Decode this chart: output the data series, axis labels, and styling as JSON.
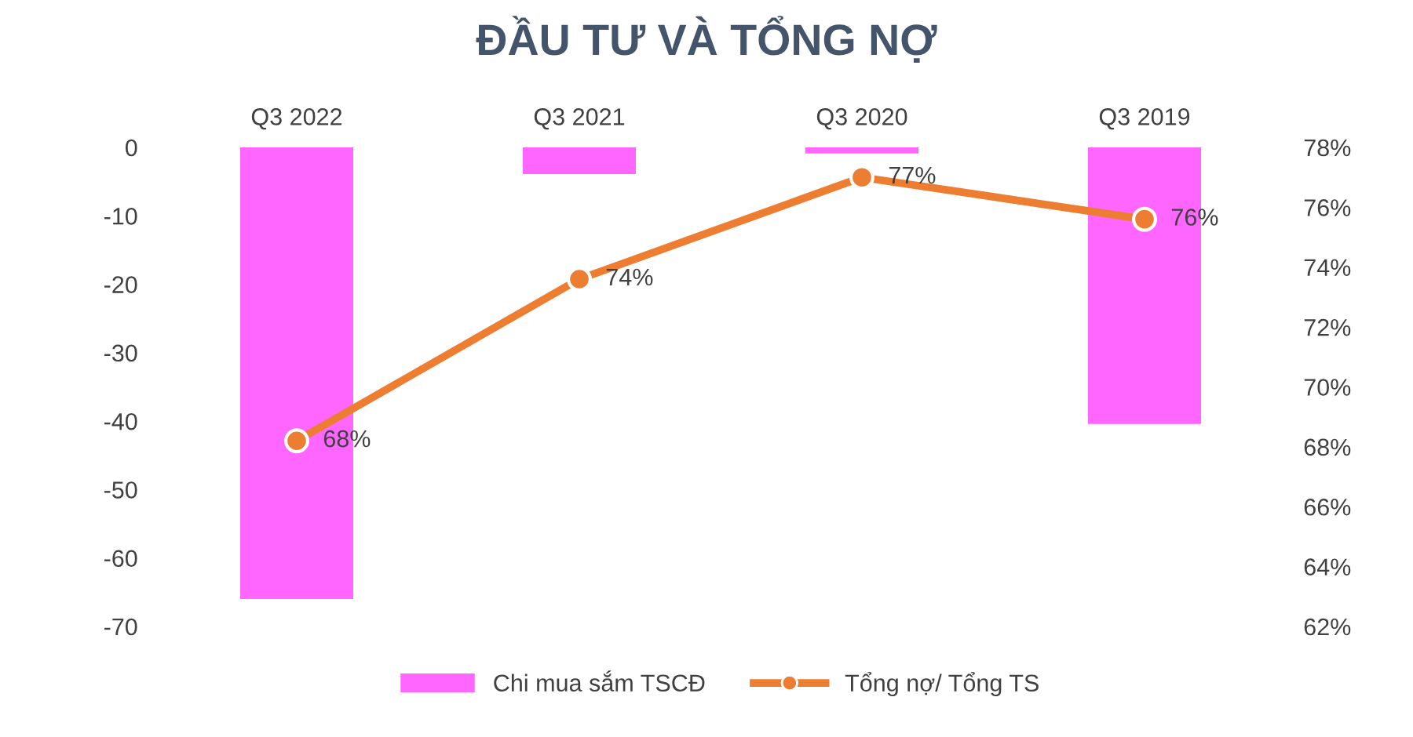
{
  "chart_data": {
    "type": "bar",
    "title": "ĐẦU TƯ VÀ TỔNG NỢ",
    "categories": [
      "Q3 2022",
      "Q3 2021",
      "Q3 2020",
      "Q3 2019"
    ],
    "series": [
      {
        "name": "Chi mua sắm TSCĐ",
        "color": "#ff66ff",
        "values": [
          -66,
          -3.9,
          -0.9,
          -40.4
        ]
      },
      {
        "name": "Tổng nợ/ Tổng TS",
        "type": "line",
        "axis": "y2",
        "color": "#ed7d31",
        "marker": "circle",
        "values": [
          68.2,
          73.6,
          77.0,
          75.6
        ],
        "value_labels": [
          "68%",
          "74%",
          "77%",
          "76%"
        ]
      }
    ],
    "ylim": [
      -70,
      0
    ],
    "yticks": [
      0,
      -10,
      -20,
      -30,
      -40,
      -50,
      -60,
      -70
    ],
    "y2lim": [
      62,
      78
    ],
    "y2ticks": [
      {
        "value": 62,
        "label": "62%"
      },
      {
        "value": 64,
        "label": "64%"
      },
      {
        "value": 66,
        "label": "66%"
      },
      {
        "value": 68,
        "label": "68%"
      },
      {
        "value": 70,
        "label": "70%"
      },
      {
        "value": 72,
        "label": "72%"
      },
      {
        "value": 74,
        "label": "74%"
      },
      {
        "value": 76,
        "label": "76%"
      },
      {
        "value": 78,
        "label": "78%"
      }
    ],
    "grid": false,
    "legend": "bottom"
  }
}
